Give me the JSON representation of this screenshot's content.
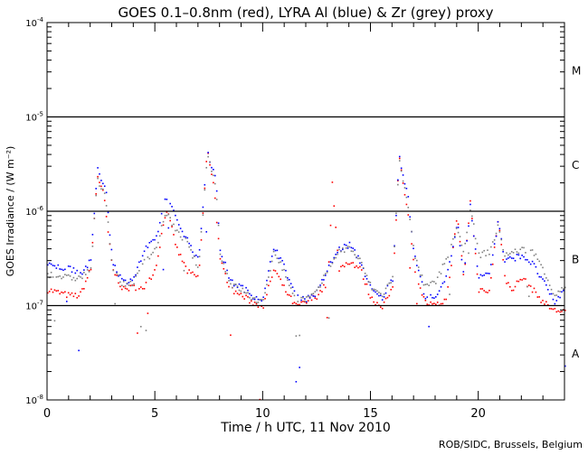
{
  "chart_data": {
    "type": "scatter",
    "title": "GOES 0.1–0.8nm (red), LYRA Al (blue) & Zr (grey) proxy",
    "xlabel": "Time / h UTC, 11 Nov 2010",
    "ylabel": "GOES Irradiance / (W m⁻²)",
    "xlim": [
      0,
      24
    ],
    "ylim": [
      1e-08,
      0.0001
    ],
    "yscale": "log",
    "xticks": [
      0,
      5,
      10,
      15,
      20
    ],
    "xtick_labels": [
      "0",
      "5",
      "10",
      "15",
      "20"
    ],
    "yticks": [
      {
        "base": "10",
        "exp": "-8"
      },
      {
        "base": "10",
        "exp": "-7"
      },
      {
        "base": "10",
        "exp": "-6"
      },
      {
        "base": "10",
        "exp": "-5"
      },
      {
        "base": "10",
        "exp": "-4"
      }
    ],
    "reference_lines": [
      1e-07,
      1e-06,
      1e-05
    ],
    "class_labels": [
      {
        "label": "A",
        "value": 3.16e-08
      },
      {
        "label": "B",
        "value": 3.16e-07
      },
      {
        "label": "C",
        "value": 3.16e-06
      },
      {
        "label": "M",
        "value": 3.16e-05
      }
    ],
    "value_unit_note": "series values in units of 1e-7 W m^-2, as [hour, value]",
    "series": [
      {
        "name": "GOES 0.1-0.8nm",
        "color": "#ff0000",
        "points": [
          [
            0,
            1.5
          ],
          [
            1,
            1.3
          ],
          [
            1.5,
            1.3
          ],
          [
            2,
            2.5
          ],
          [
            2.3,
            25
          ],
          [
            2.6,
            15
          ],
          [
            3,
            2.5
          ],
          [
            3.5,
            1.5
          ],
          [
            4,
            1.6
          ],
          [
            4.5,
            1.6
          ],
          [
            5,
            2.5
          ],
          [
            5.5,
            11
          ],
          [
            6,
            4
          ],
          [
            6.5,
            2.3
          ],
          [
            7,
            2.0
          ],
          [
            7.4,
            45
          ],
          [
            7.7,
            20
          ],
          [
            8,
            3
          ],
          [
            8.5,
            1.5
          ],
          [
            9,
            1.3
          ],
          [
            9.5,
            1.1
          ],
          [
            10,
            1.0
          ],
          [
            10.5,
            2.5
          ],
          [
            11,
            1.5
          ],
          [
            11.5,
            1.0
          ],
          [
            12,
            1.1
          ],
          [
            12.5,
            1.3
          ],
          [
            13,
            1.8
          ],
          [
            13.2,
            20
          ],
          [
            13.5,
            2.5
          ],
          [
            14,
            3
          ],
          [
            14.5,
            2.5
          ],
          [
            15,
            1.2
          ],
          [
            15.5,
            1.0
          ],
          [
            16,
            1.5
          ],
          [
            16.3,
            40
          ],
          [
            16.7,
            10
          ],
          [
            17,
            2.5
          ],
          [
            17.5,
            1.1
          ],
          [
            18,
            1.0
          ],
          [
            18.5,
            1.2
          ],
          [
            19,
            9
          ],
          [
            19.3,
            2
          ],
          [
            19.6,
            13
          ],
          [
            20,
            1.5
          ],
          [
            20.5,
            1.5
          ],
          [
            20.9,
            9
          ],
          [
            21.2,
            2
          ],
          [
            21.5,
            1.5
          ],
          [
            22,
            2
          ],
          [
            22.5,
            1.5
          ],
          [
            23,
            1.1
          ],
          [
            23.5,
            0.9
          ],
          [
            24,
            0.9
          ]
        ]
      },
      {
        "name": "LYRA Al proxy",
        "color": "#0000ff",
        "points": [
          [
            0,
            2.7
          ],
          [
            1,
            2.5
          ],
          [
            1.5,
            2.2
          ],
          [
            2,
            3
          ],
          [
            2.3,
            28
          ],
          [
            2.7,
            18
          ],
          [
            3,
            3
          ],
          [
            3.5,
            1.8
          ],
          [
            4,
            2
          ],
          [
            4.5,
            4
          ],
          [
            5,
            5
          ],
          [
            5.5,
            15
          ],
          [
            6,
            8
          ],
          [
            6.4,
            5.5
          ],
          [
            7,
            3
          ],
          [
            7.4,
            45
          ],
          [
            7.8,
            22
          ],
          [
            8,
            4
          ],
          [
            8.5,
            1.8
          ],
          [
            9,
            1.6
          ],
          [
            9.5,
            1.3
          ],
          [
            10,
            1.2
          ],
          [
            10.5,
            4.5
          ],
          [
            11,
            2.5
          ],
          [
            11.5,
            1.3
          ],
          [
            12,
            1.2
          ],
          [
            12.5,
            1.4
          ],
          [
            13,
            2.5
          ],
          [
            13.5,
            4
          ],
          [
            14,
            4.5
          ],
          [
            14.5,
            3
          ],
          [
            15,
            1.5
          ],
          [
            15.5,
            1.2
          ],
          [
            16,
            2
          ],
          [
            16.3,
            40
          ],
          [
            16.7,
            15
          ],
          [
            17,
            3.5
          ],
          [
            17.5,
            1.3
          ],
          [
            18,
            1.2
          ],
          [
            18.5,
            2
          ],
          [
            19,
            8
          ],
          [
            19.3,
            2
          ],
          [
            19.6,
            12
          ],
          [
            20,
            2
          ],
          [
            20.5,
            2.3
          ],
          [
            20.9,
            8
          ],
          [
            21.2,
            3
          ],
          [
            22,
            3.5
          ],
          [
            22.5,
            2.8
          ],
          [
            23,
            1.8
          ],
          [
            23.5,
            1.1
          ],
          [
            24,
            1.5
          ]
        ]
      },
      {
        "name": "LYRA Zr proxy",
        "color": "#808080",
        "points": [
          [
            0,
            2.2
          ],
          [
            1,
            2
          ],
          [
            1.5,
            2
          ],
          [
            2,
            2.5
          ],
          [
            2.3,
            22
          ],
          [
            2.7,
            14
          ],
          [
            3,
            2.5
          ],
          [
            3.5,
            1.7
          ],
          [
            4,
            1.8
          ],
          [
            4.5,
            3
          ],
          [
            5,
            4
          ],
          [
            5.5,
            10
          ],
          [
            6,
            6
          ],
          [
            6.4,
            5
          ],
          [
            7,
            2.5
          ],
          [
            7.4,
            40
          ],
          [
            7.8,
            20
          ],
          [
            8,
            3.5
          ],
          [
            8.5,
            1.7
          ],
          [
            9,
            1.5
          ],
          [
            9.5,
            1.2
          ],
          [
            10,
            1.1
          ],
          [
            10.5,
            4
          ],
          [
            11,
            2.2
          ],
          [
            11.5,
            1.2
          ],
          [
            12,
            1.2
          ],
          [
            12.5,
            1.4
          ],
          [
            13,
            2.5
          ],
          [
            13.5,
            3.8
          ],
          [
            14,
            4.2
          ],
          [
            14.5,
            3
          ],
          [
            15,
            1.6
          ],
          [
            15.5,
            1.3
          ],
          [
            16,
            2
          ],
          [
            16.3,
            35
          ],
          [
            16.7,
            13
          ],
          [
            17,
            3.5
          ],
          [
            17.5,
            1.6
          ],
          [
            18,
            1.8
          ],
          [
            18.5,
            3.2
          ],
          [
            19,
            7
          ],
          [
            19.3,
            3.5
          ],
          [
            19.6,
            11
          ],
          [
            20,
            3.5
          ],
          [
            20.5,
            3.8
          ],
          [
            20.9,
            7
          ],
          [
            21.2,
            3.5
          ],
          [
            22,
            4
          ],
          [
            22.5,
            3.8
          ],
          [
            23,
            2.5
          ],
          [
            23.5,
            1.3
          ],
          [
            24,
            1.6
          ]
        ]
      }
    ]
  },
  "credit": "ROB/SIDC, Brussels, Belgium"
}
